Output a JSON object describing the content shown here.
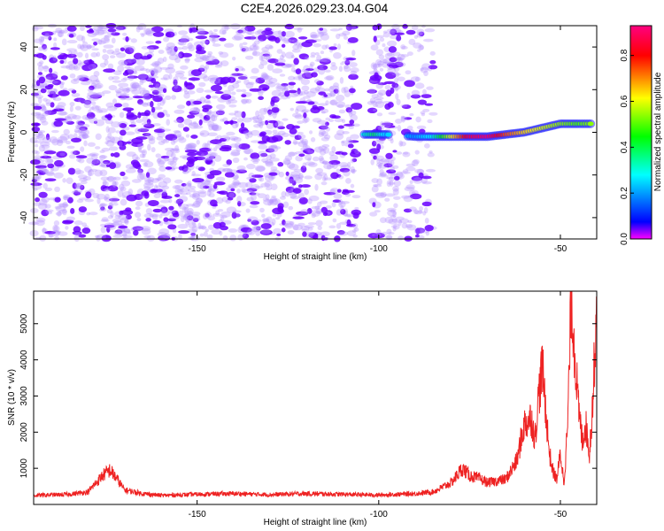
{
  "title": "C2E4.2026.029.23.04.G04",
  "chart_data": [
    {
      "type": "scatter",
      "name": "spectrogram",
      "title": "C2E4.2026.029.23.04.G04",
      "xlabel": "Height of straight line (km)",
      "ylabel": "Frequency (Hz)",
      "xlim": [
        -195,
        -40
      ],
      "ylim": [
        -50,
        50
      ],
      "xticks": [
        -150,
        -100,
        -50
      ],
      "yticks": [
        -40,
        -20,
        0,
        20,
        40
      ],
      "colorbar": {
        "label": "Normalized spectral amplitude",
        "range": [
          0,
          0.93
        ],
        "ticks": [
          0.0,
          0.2,
          0.4,
          0.6,
          0.8
        ],
        "colormap": [
          "#ff00ff",
          "#0000ff",
          "#00ffff",
          "#00ff00",
          "#ffff00",
          "#ff0000",
          "#ff0080"
        ]
      },
      "noise_amplitude_color": "#6a00ff",
      "signal_track": [
        {
          "x": -104,
          "y": -1,
          "amp": 0.3
        },
        {
          "x": -101,
          "y": -1,
          "amp": 0.4
        },
        {
          "x": -98,
          "y": -1,
          "amp": 0.25
        },
        {
          "x": -90,
          "y": -2,
          "amp": 0.2
        },
        {
          "x": -85,
          "y": -2,
          "amp": 0.3
        },
        {
          "x": -80,
          "y": -2,
          "amp": 0.6
        },
        {
          "x": -75,
          "y": -2,
          "amp": 0.85
        },
        {
          "x": -70,
          "y": -2,
          "amp": 0.9
        },
        {
          "x": -65,
          "y": -1,
          "amp": 0.75
        },
        {
          "x": -60,
          "y": 0,
          "amp": 0.65
        },
        {
          "x": -55,
          "y": 2,
          "amp": 0.6
        },
        {
          "x": -50,
          "y": 4,
          "amp": 0.55
        },
        {
          "x": -45,
          "y": 4,
          "amp": 0.5
        },
        {
          "x": -41,
          "y": 4,
          "amp": 0.55
        }
      ]
    },
    {
      "type": "line",
      "name": "snr",
      "xlabel": "Height of straight line (km)",
      "ylabel": "SNR (10 * v/v)",
      "xlim": [
        -195,
        -40
      ],
      "ylim": [
        0,
        5900
      ],
      "xticks": [
        -150,
        -100,
        -50
      ],
      "yticks": [
        1000,
        2000,
        3000,
        4000,
        5000
      ],
      "color": "#ee2222",
      "series": [
        {
          "name": "SNR",
          "x": [
            -195,
            -185,
            -180,
            -176,
            -174,
            -172,
            -170,
            -165,
            -160,
            -150,
            -140,
            -130,
            -120,
            -110,
            -100,
            -90,
            -85,
            -80,
            -77,
            -75,
            -72,
            -70,
            -65,
            -62,
            -60,
            -58,
            -57,
            -56,
            -55,
            -54,
            -53,
            -52,
            -51,
            -50,
            -49,
            -48,
            -47,
            -46,
            -45,
            -44,
            -43,
            -42,
            -41,
            -40
          ],
          "y": [
            250,
            280,
            350,
            800,
            950,
            700,
            400,
            300,
            250,
            280,
            300,
            270,
            300,
            280,
            260,
            300,
            350,
            600,
            1000,
            800,
            700,
            600,
            700,
            1200,
            2200,
            2400,
            1800,
            3000,
            3800,
            2600,
            1400,
            900,
            700,
            1400,
            600,
            2200,
            5800,
            4200,
            2600,
            1800,
            2200,
            1400,
            3000,
            5700
          ]
        }
      ]
    }
  ]
}
